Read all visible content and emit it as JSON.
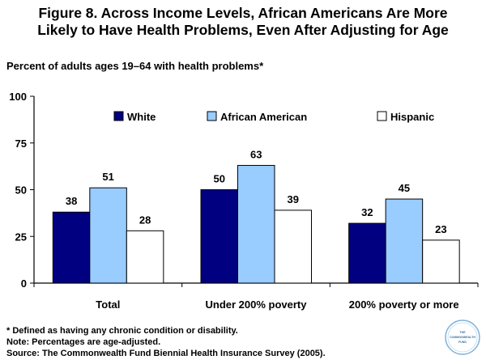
{
  "figure": {
    "title_line1": "Figure 8. Across Income Levels, African Americans Are More",
    "title_line2": "Likely to Have Health Problems, Even After Adjusting for Age",
    "subtitle": "Percent of adults ages 19–64 with health problems*"
  },
  "chart_data": {
    "type": "bar",
    "categories": [
      "Total",
      "Under 200% poverty",
      "200% poverty or more"
    ],
    "series": [
      {
        "name": "White",
        "values": [
          38,
          50,
          32
        ],
        "color": "#000080"
      },
      {
        "name": "African American",
        "values": [
          51,
          63,
          45
        ],
        "color": "#99ccff"
      },
      {
        "name": "Hispanic",
        "values": [
          28,
          39,
          23
        ],
        "color": "#ffffff"
      }
    ],
    "ylim": [
      0,
      100
    ],
    "yticks": [
      0,
      25,
      50,
      75,
      100
    ],
    "legend_position": "top",
    "grid": false
  },
  "footnotes": {
    "line1": "* Defined as having any chronic condition or disability.",
    "line2": "Note: Percentages are age-adjusted.",
    "line3": "Source: The Commonwealth Fund Biennial Health Insurance Survey (2005)."
  },
  "logo": {
    "line1": "THE",
    "line2": "COMMONWEALTH",
    "line3": "FUND"
  }
}
